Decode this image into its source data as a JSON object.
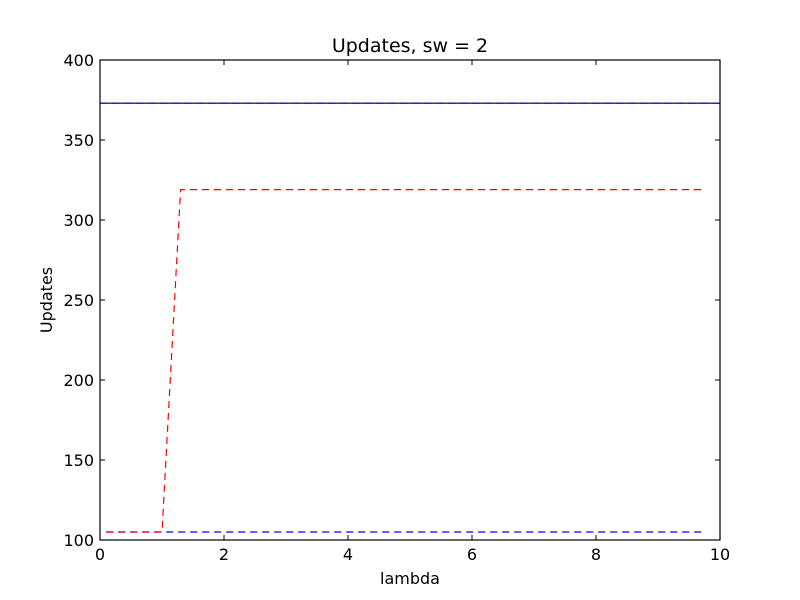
{
  "chart_data": {
    "type": "line",
    "title": "Updates, sw = 2",
    "xlabel": "lambda",
    "ylabel": "Updates",
    "xlim": [
      0,
      10
    ],
    "ylim": [
      100,
      400
    ],
    "xticks": [
      0,
      2,
      4,
      6,
      8,
      10
    ],
    "yticks": [
      100,
      150,
      200,
      250,
      300,
      350,
      400
    ],
    "xtick_labels": [
      "0",
      "2",
      "4",
      "6",
      "8",
      "10"
    ],
    "ytick_labels": [
      "100",
      "150",
      "200",
      "250",
      "300",
      "350",
      "400"
    ],
    "grid": false,
    "legend": "none",
    "series": [
      {
        "color": "#0000ff",
        "linestyle": "dashed",
        "x": [
          0.1,
          9.7
        ],
        "y": [
          105,
          105
        ]
      },
      {
        "color": "#ff0000",
        "linestyle": "dashed",
        "x": [
          0.1,
          1.0,
          1.3,
          9.7
        ],
        "y": [
          105,
          105,
          319,
          319
        ]
      },
      {
        "color": "#000000",
        "linestyle": "solid",
        "x": [
          0,
          10
        ],
        "y": [
          373,
          373
        ]
      },
      {
        "color": "#0000ff",
        "linestyle": "dashed",
        "x": [
          0,
          10
        ],
        "y": [
          373,
          373
        ]
      }
    ]
  }
}
